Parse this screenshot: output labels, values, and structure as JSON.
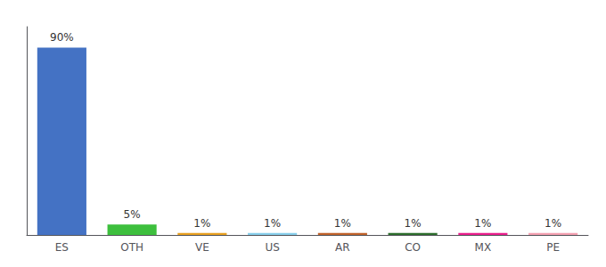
{
  "chart_data": {
    "type": "bar",
    "categories": [
      "ES",
      "OTH",
      "VE",
      "US",
      "AR",
      "CO",
      "MX",
      "PE"
    ],
    "values": [
      90,
      5,
      1,
      1,
      1,
      1,
      1,
      1
    ],
    "value_labels": [
      "90%",
      "5%",
      "1%",
      "1%",
      "1%",
      "1%",
      "1%",
      "1%"
    ],
    "colors": [
      "#4472c4",
      "#3dbf3d",
      "#e8a020",
      "#87ceeb",
      "#c0622a",
      "#2d6e2d",
      "#e91e8c",
      "#f4a0b0"
    ],
    "ylim": [
      0,
      100
    ],
    "grid": false,
    "data_labels": true,
    "tick_labels": "x"
  }
}
